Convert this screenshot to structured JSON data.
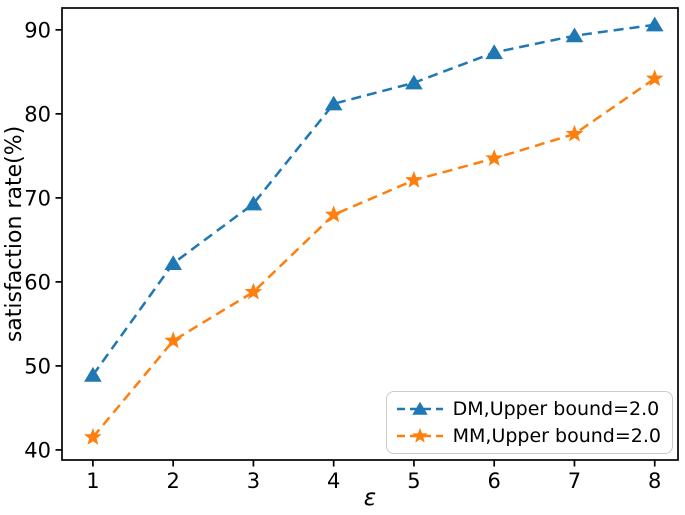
{
  "chart_data": {
    "type": "line",
    "title": "",
    "xlabel": "ε",
    "ylabel": "satisfaction rate(%)",
    "x": [
      1,
      2,
      3,
      4,
      5,
      6,
      7,
      8
    ],
    "xticks": [
      1,
      2,
      3,
      4,
      5,
      6,
      7,
      8
    ],
    "yticks": [
      40,
      50,
      60,
      70,
      80,
      90
    ],
    "xlim": [
      0.615,
      8.29
    ],
    "ylim": [
      38.8,
      92.6
    ],
    "grid": false,
    "legend_position": "lower right",
    "background_color": "#ffffff",
    "axis_color": "#000000",
    "legend_border_color": "#cbcbcb",
    "series": [
      {
        "name": "DM,Upper bound=2.0",
        "color": "#1f77b4",
        "marker": "triangle-up",
        "linestyle": "dashed",
        "values": [
          48.9,
          62.2,
          69.3,
          81.2,
          83.7,
          87.3,
          89.3,
          90.6
        ]
      },
      {
        "name": "MM,Upper bound=2.0",
        "color": "#ff7f0e",
        "marker": "star",
        "linestyle": "dashed",
        "values": [
          41.5,
          53.0,
          58.8,
          68.0,
          72.1,
          74.7,
          77.6,
          84.2
        ]
      }
    ]
  }
}
